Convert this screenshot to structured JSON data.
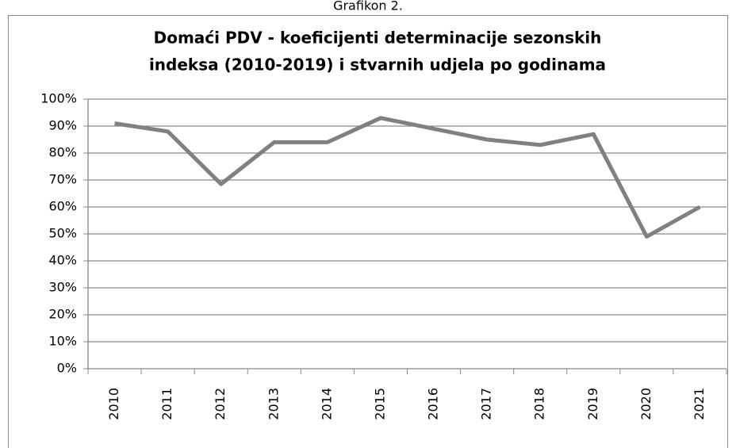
{
  "chart_data": {
    "type": "line",
    "caption": "Grafikon 2.",
    "title": [
      "Domaći PDV - koeficijenti determinacije sezonskih",
      "indeksa (2010-2019)  i stvarnih udjela po godinama"
    ],
    "categories": [
      "2010",
      "2011",
      "2012",
      "2013",
      "2014",
      "2015",
      "2016",
      "2017",
      "2018",
      "2019",
      "2020",
      "2021"
    ],
    "series": [
      {
        "color": "#808080",
        "values": [
          91,
          88,
          68.5,
          84,
          84,
          93,
          89,
          85,
          83,
          87,
          49,
          60
        ]
      }
    ],
    "ylim": [
      0,
      100
    ],
    "yticks": [
      {
        "value": 0,
        "label": "0%"
      },
      {
        "value": 10,
        "label": "10%"
      },
      {
        "value": 20,
        "label": "20%"
      },
      {
        "value": 30,
        "label": "30%"
      },
      {
        "value": 40,
        "label": "40%"
      },
      {
        "value": 50,
        "label": "50%"
      },
      {
        "value": 60,
        "label": "60%"
      },
      {
        "value": 70,
        "label": "70%"
      },
      {
        "value": 80,
        "label": "80%"
      },
      {
        "value": 90,
        "label": "90%"
      },
      {
        "value": 100,
        "label": "100%"
      }
    ],
    "grid": true
  }
}
